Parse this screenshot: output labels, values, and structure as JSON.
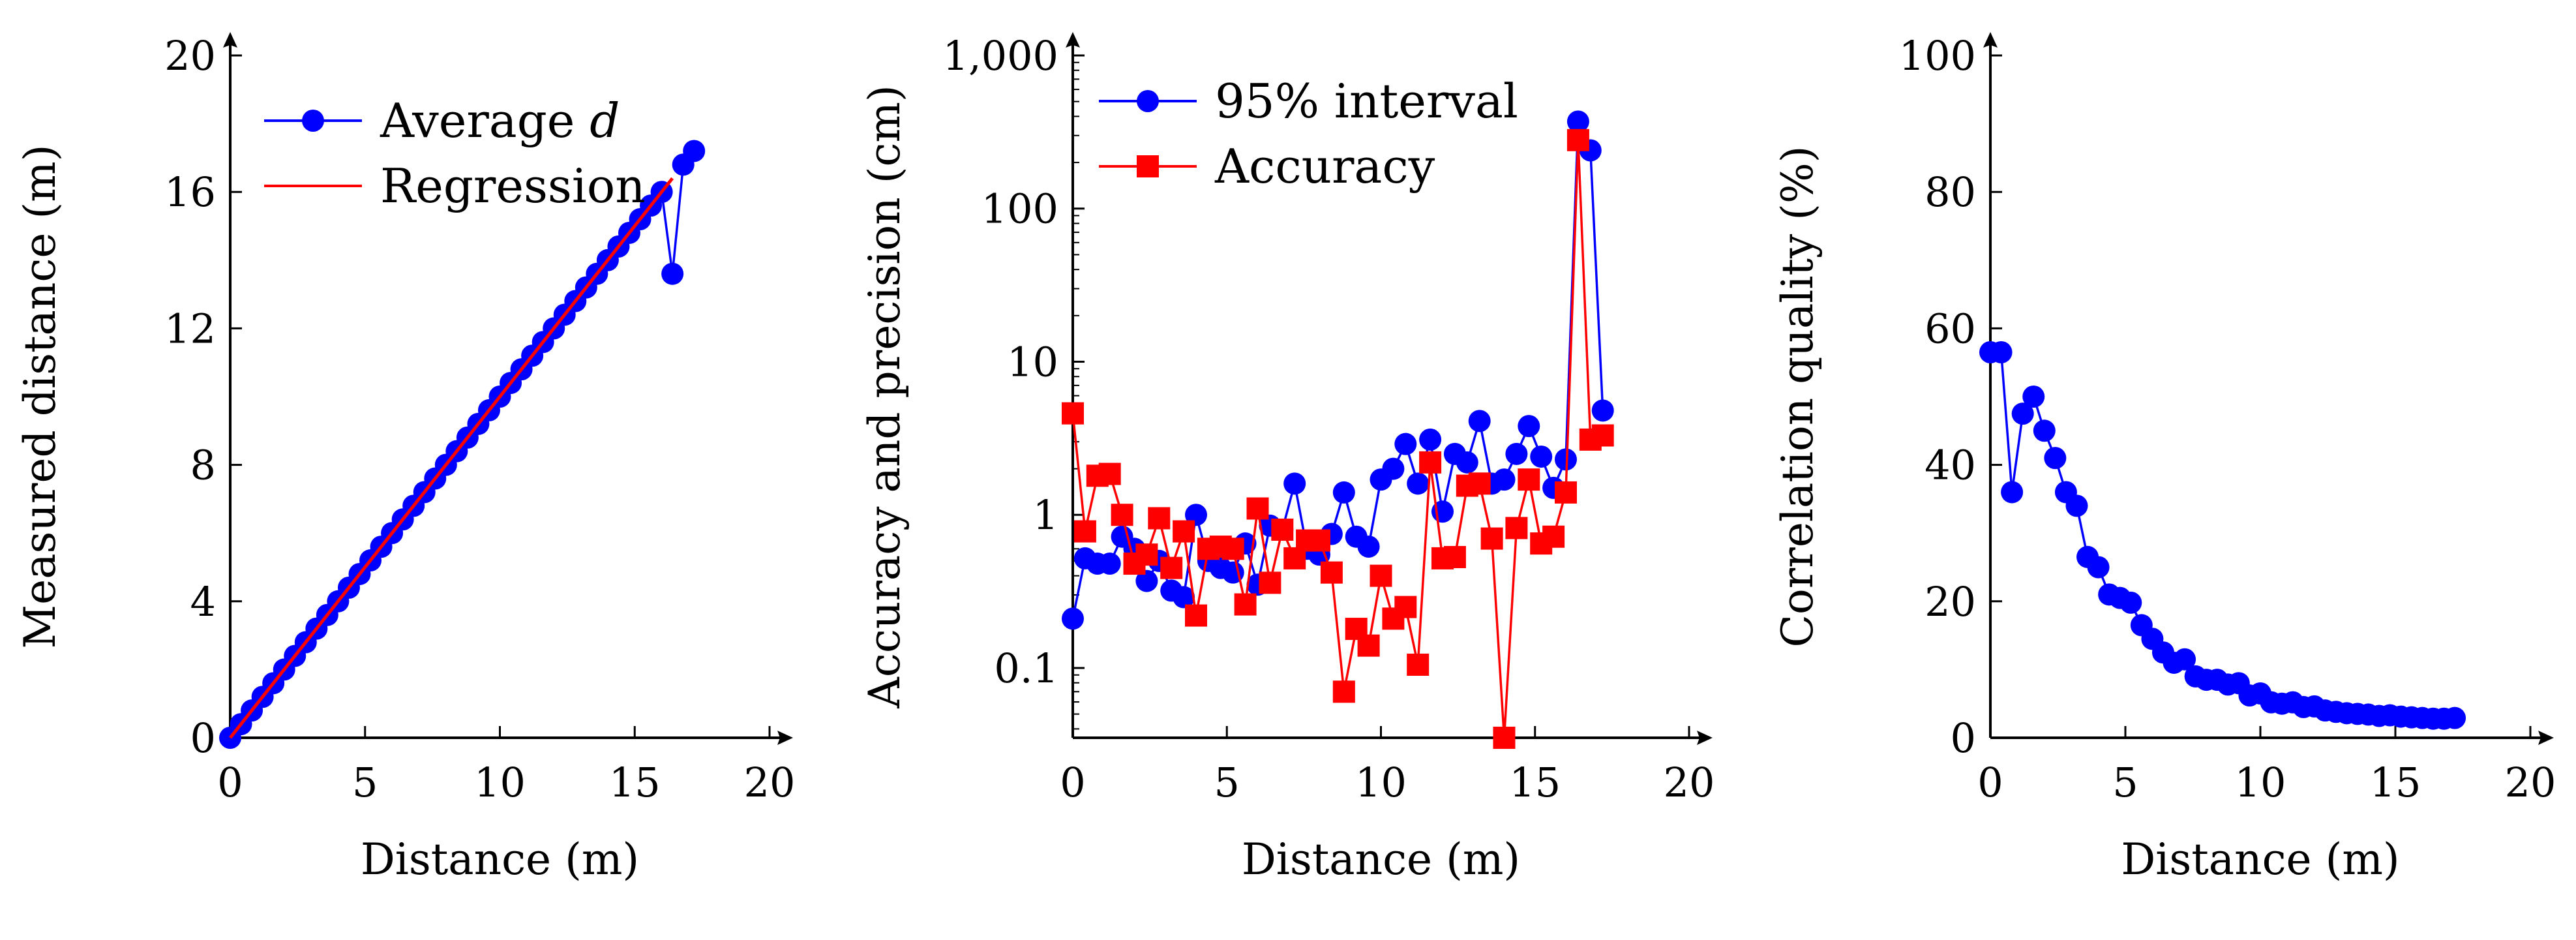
{
  "colors": {
    "blue": "#0000ff",
    "red": "#ff0000",
    "axis": "#000000"
  },
  "chart_data": [
    {
      "type": "line",
      "id": "left",
      "xlabel": "Distance (m)",
      "ylabel": "Measured distance (m)",
      "xlim": [
        0,
        20
      ],
      "ylim": [
        0,
        20
      ],
      "xticks": [
        0,
        5,
        10,
        15,
        20
      ],
      "yticks": [
        0,
        4,
        8,
        12,
        16,
        20
      ],
      "xtick_labels": [
        "0",
        "5",
        "10",
        "15",
        "20"
      ],
      "ytick_labels": [
        "0",
        "4",
        "8",
        "12",
        "16",
        "20"
      ],
      "legend": {
        "position": "top-left",
        "entries": [
          {
            "label": "Average ",
            "label_italic": "d",
            "series": "avg"
          },
          {
            "label": "Regression",
            "series": "reg"
          }
        ]
      },
      "series": [
        {
          "name": "Average d",
          "key": "avg",
          "color": "#0000ff",
          "marker": "circle",
          "x": [
            0.0,
            0.4,
            0.8,
            1.2,
            1.6,
            2.0,
            2.4,
            2.8,
            3.2,
            3.6,
            4.0,
            4.4,
            4.8,
            5.2,
            5.6,
            6.0,
            6.4,
            6.8,
            7.2,
            7.6,
            8.0,
            8.4,
            8.8,
            9.2,
            9.6,
            10.0,
            10.4,
            10.8,
            11.2,
            11.6,
            12.0,
            12.4,
            12.8,
            13.2,
            13.6,
            14.0,
            14.4,
            14.8,
            15.2,
            15.6,
            16.0,
            16.4,
            16.8,
            17.2
          ],
          "y": [
            0.0,
            0.4,
            0.8,
            1.2,
            1.6,
            2.0,
            2.4,
            2.8,
            3.2,
            3.6,
            4.0,
            4.4,
            4.8,
            5.2,
            5.6,
            6.0,
            6.4,
            6.8,
            7.2,
            7.6,
            8.0,
            8.4,
            8.8,
            9.2,
            9.6,
            10.0,
            10.4,
            10.8,
            11.2,
            11.6,
            12.0,
            12.4,
            12.8,
            13.2,
            13.6,
            14.0,
            14.4,
            14.8,
            15.2,
            15.6,
            16.0,
            13.6,
            16.8,
            17.2
          ]
        },
        {
          "name": "Regression",
          "key": "reg",
          "color": "#ff0000",
          "marker": "none",
          "x": [
            0,
            16.4
          ],
          "y": [
            0,
            16.4
          ]
        }
      ]
    },
    {
      "type": "line",
      "id": "middle",
      "yscale": "log",
      "xlabel": "Distance (m)",
      "ylabel": "Accuracy and precision (cm)",
      "xlim": [
        0,
        20
      ],
      "ylim": [
        0.035,
        1000
      ],
      "xticks": [
        0,
        5,
        10,
        15,
        20
      ],
      "yticks": [
        0.1,
        1,
        10,
        100,
        1000
      ],
      "xtick_labels": [
        "0",
        "5",
        "10",
        "15",
        "20"
      ],
      "ytick_labels": [
        "0.1",
        "1",
        "10",
        "100",
        "1,000"
      ],
      "legend": {
        "position": "top-left",
        "entries": [
          {
            "label": "95% interval",
            "series": "interval"
          },
          {
            "label": "Accuracy",
            "series": "acc"
          }
        ]
      },
      "series": [
        {
          "name": "95% interval",
          "key": "interval",
          "color": "#0000ff",
          "marker": "circle",
          "x": [
            0.0,
            0.4,
            0.8,
            1.2,
            1.6,
            2.0,
            2.4,
            2.8,
            3.2,
            3.6,
            4.0,
            4.4,
            4.8,
            5.2,
            5.6,
            6.0,
            6.4,
            6.8,
            7.2,
            7.6,
            8.0,
            8.4,
            8.8,
            9.2,
            9.6,
            10.0,
            10.4,
            10.8,
            11.2,
            11.6,
            12.0,
            12.4,
            12.8,
            13.2,
            13.6,
            14.0,
            14.4,
            14.8,
            15.2,
            15.6,
            16.0,
            16.4,
            16.8,
            17.2
          ],
          "y": [
            0.21,
            0.52,
            0.48,
            0.48,
            0.72,
            0.6,
            0.37,
            0.5,
            0.32,
            0.29,
            1.0,
            0.5,
            0.45,
            0.42,
            0.65,
            0.35,
            0.85,
            0.8,
            1.6,
            0.6,
            0.55,
            0.75,
            1.4,
            0.72,
            0.62,
            1.7,
            2.0,
            2.9,
            1.6,
            3.1,
            1.05,
            2.5,
            2.2,
            4.1,
            1.6,
            1.7,
            2.5,
            3.8,
            2.4,
            1.5,
            2.3,
            370,
            240,
            4.8
          ]
        },
        {
          "name": "Accuracy",
          "key": "acc",
          "color": "#ff0000",
          "marker": "square",
          "x": [
            0.0,
            0.4,
            0.8,
            1.2,
            1.6,
            2.0,
            2.4,
            2.8,
            3.2,
            3.6,
            4.0,
            4.4,
            4.8,
            5.2,
            5.6,
            6.0,
            6.4,
            6.8,
            7.2,
            7.6,
            8.0,
            8.4,
            8.8,
            9.2,
            9.6,
            10.0,
            10.4,
            10.8,
            11.2,
            11.6,
            12.0,
            12.4,
            12.8,
            13.2,
            13.6,
            14.0,
            14.4,
            14.8,
            15.2,
            15.6,
            16.0,
            16.4,
            16.8,
            17.2
          ],
          "y": [
            4.6,
            0.78,
            1.8,
            1.85,
            1.0,
            0.48,
            0.55,
            0.95,
            0.45,
            0.78,
            0.22,
            0.6,
            0.62,
            0.6,
            0.26,
            1.1,
            0.36,
            0.8,
            0.52,
            0.68,
            0.68,
            0.42,
            0.07,
            0.18,
            0.14,
            0.4,
            0.21,
            0.25,
            0.105,
            2.2,
            0.52,
            0.53,
            1.55,
            1.6,
            0.7,
            0.035,
            0.82,
            1.7,
            0.65,
            0.72,
            1.4,
            280,
            3.1,
            3.3
          ]
        }
      ]
    },
    {
      "type": "line",
      "id": "right",
      "xlabel": "Distance (m)",
      "ylabel": "Correlation quality (%)",
      "xlim": [
        0,
        20
      ],
      "ylim": [
        0,
        100
      ],
      "xticks": [
        0,
        5,
        10,
        15,
        20
      ],
      "yticks": [
        0,
        20,
        40,
        60,
        80,
        100
      ],
      "xtick_labels": [
        "0",
        "5",
        "10",
        "15",
        "20"
      ],
      "ytick_labels": [
        "0",
        "20",
        "40",
        "60",
        "80",
        "100"
      ],
      "series": [
        {
          "name": "Correlation quality",
          "key": "cq",
          "color": "#0000ff",
          "marker": "circle",
          "x": [
            0.0,
            0.4,
            0.8,
            1.2,
            1.6,
            2.0,
            2.4,
            2.8,
            3.2,
            3.6,
            4.0,
            4.4,
            4.8,
            5.2,
            5.6,
            6.0,
            6.4,
            6.8,
            7.2,
            7.6,
            8.0,
            8.4,
            8.8,
            9.2,
            9.6,
            10.0,
            10.4,
            10.8,
            11.2,
            11.6,
            12.0,
            12.4,
            12.8,
            13.2,
            13.6,
            14.0,
            14.4,
            14.8,
            15.2,
            15.6,
            16.0,
            16.4,
            16.8,
            17.2
          ],
          "y": [
            56.5,
            56.5,
            36,
            47.5,
            50,
            45,
            41,
            36,
            34,
            26.5,
            25,
            21,
            20.5,
            19.8,
            16.5,
            14.5,
            12.5,
            11,
            11.5,
            9,
            8.5,
            8.5,
            7.8,
            8,
            6.2,
            6.5,
            5.2,
            5.0,
            5.2,
            4.5,
            4.6,
            4.0,
            3.8,
            3.6,
            3.5,
            3.4,
            3.2,
            3.3,
            3.1,
            3.0,
            2.9,
            2.8,
            2.8,
            2.9
          ]
        }
      ]
    }
  ]
}
